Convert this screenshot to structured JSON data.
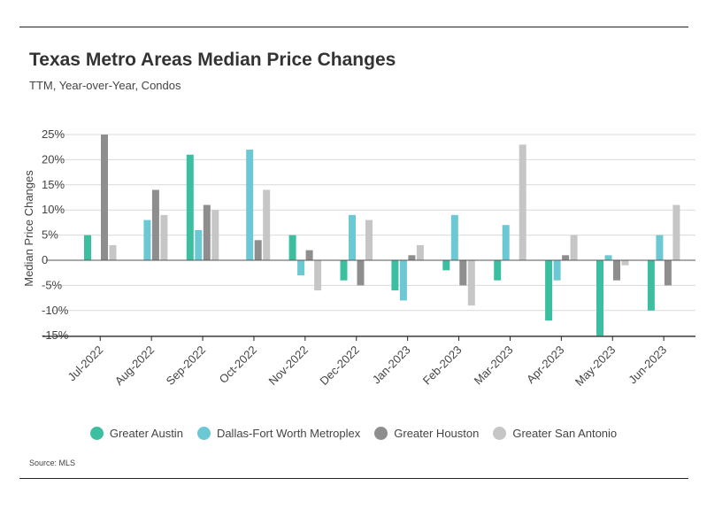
{
  "header": {
    "title": "Texas Metro Areas Median Price Changes",
    "subtitle": "TTM, Year-over-Year, Condos"
  },
  "source": "Source: MLS",
  "colors": {
    "Greater Austin": "#3cbfa0",
    "Dallas-Fort Worth Metroplex": "#6cc8d3",
    "Greater Houston": "#8e8e8e",
    "Greater San Antonio": "#c6c6c6",
    "grid": "#d9d9d9",
    "axis": "#222222"
  },
  "chart_data": {
    "type": "bar",
    "title": "Texas Metro Areas Median Price Changes",
    "subtitle": "TTM, Year-over-Year, Condos",
    "xlabel": "",
    "ylabel": "Median Price Changes",
    "categories": [
      "Jul-2022",
      "Aug-2022",
      "Sep-2022",
      "Oct-2022",
      "Nov-2022",
      "Dec-2022",
      "Jan-2023",
      "Feb-2023",
      "Mar-2023",
      "Apr-2023",
      "May-2023",
      "Jun-2023"
    ],
    "series": [
      {
        "name": "Greater Austin",
        "values": [
          5,
          null,
          21,
          null,
          5,
          -4,
          -6,
          -2,
          -4,
          -12,
          -15,
          -10
        ]
      },
      {
        "name": "Dallas-Fort Worth Metroplex",
        "values": [
          null,
          8,
          6,
          22,
          -3,
          9,
          -8,
          9,
          7,
          -4,
          1,
          5
        ]
      },
      {
        "name": "Greater Houston",
        "values": [
          25,
          14,
          11,
          4,
          2,
          -5,
          1,
          -5,
          null,
          1,
          -4,
          -5
        ]
      },
      {
        "name": "Greater San Antonio",
        "values": [
          3,
          9,
          10,
          14,
          -6,
          8,
          3,
          -9,
          23,
          5,
          -1,
          11
        ]
      }
    ],
    "yticks": [
      -15,
      -10,
      -5,
      0,
      5,
      10,
      15,
      20,
      25
    ],
    "ytick_labels": [
      "-15%",
      "-10%",
      "-5%",
      "0",
      "5%",
      "10%",
      "15%",
      "20%",
      "25%"
    ],
    "ylim": [
      -15,
      25
    ],
    "grid": true,
    "legend_position": "bottom"
  }
}
